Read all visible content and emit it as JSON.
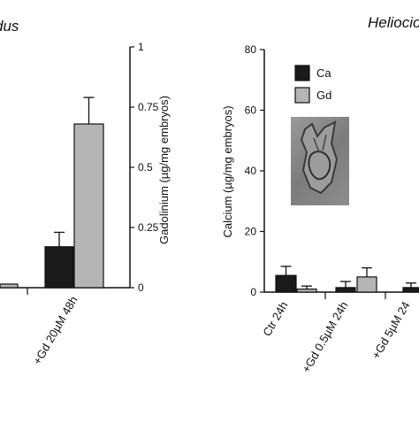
{
  "colors": {
    "ca": "#1a1a1a",
    "gd": "#b5b5b5",
    "axis": "#111111",
    "text": "#111111"
  },
  "chart_data": [
    {
      "type": "bar",
      "title": "dus",
      "ylabel": "Gadolinium (µg/mg embryos)",
      "ylim": [
        0,
        1
      ],
      "yticks": [
        "0",
        "0.25",
        "0.5",
        "0.75",
        "1"
      ],
      "categories": [
        "",
        "+Gd 20µM 48h"
      ],
      "series": [
        {
          "name": "Ca",
          "values": [
            null,
            0.17
          ],
          "errors": [
            null,
            0.06
          ]
        },
        {
          "name": "Gd",
          "values": [
            0.015,
            0.68
          ],
          "errors": [
            null,
            0.11
          ]
        }
      ]
    },
    {
      "type": "bar",
      "title": "Heliocio",
      "ylabel": "Calcium (µg/mg embryos)",
      "ylim": [
        0,
        80
      ],
      "yticks": [
        "0",
        "20",
        "40",
        "60",
        "80"
      ],
      "categories": [
        "Ctr 24h",
        "+Gd 0.5µM 24h",
        "+Gd 5µM 24"
      ],
      "series": [
        {
          "name": "Ca",
          "values": [
            5.5,
            1.5,
            1.5
          ],
          "errors": [
            3,
            2,
            1.5
          ]
        },
        {
          "name": "Gd",
          "values": [
            1,
            5,
            null
          ],
          "errors": [
            1,
            3,
            null
          ]
        }
      ],
      "legend": {
        "placement": "top-left",
        "entries": [
          "Ca",
          "Gd"
        ]
      }
    }
  ]
}
